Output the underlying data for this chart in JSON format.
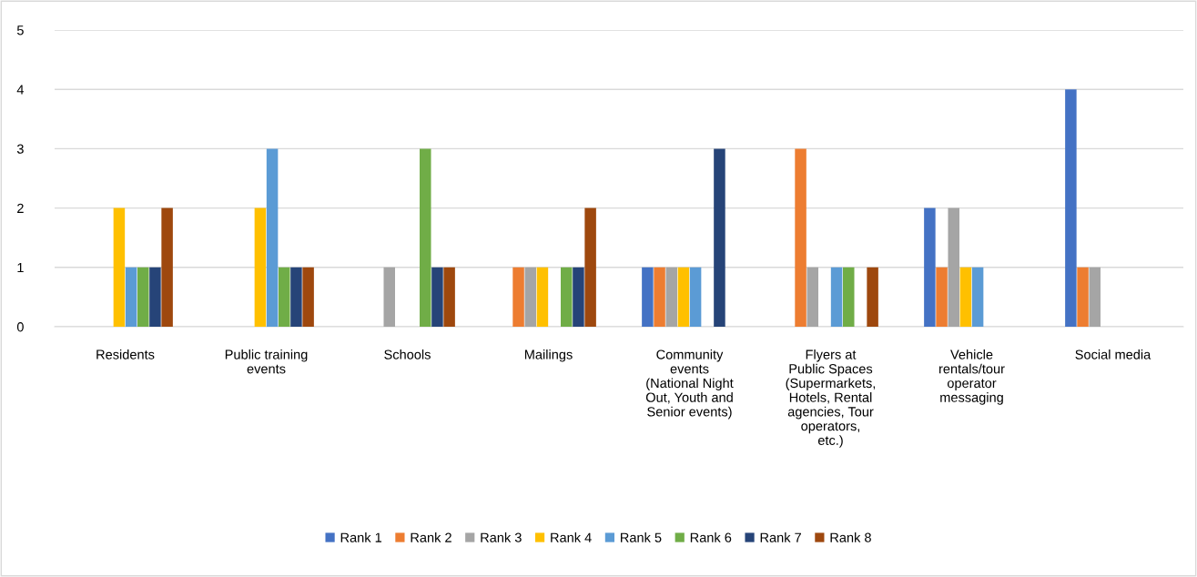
{
  "chart_data": {
    "type": "bar",
    "categories": [
      "Residents",
      "Public training events",
      "Schools",
      "Mailings",
      "Community events (National Night Out, Youth and Senior events)",
      "Flyers at Public Spaces (Supermarkets, Hotels, Rental agencies, Tour operators, etc.)",
      "Vehicle rentals/tour operator messaging",
      "Social media"
    ],
    "series": [
      {
        "name": "Rank 1",
        "color": "#4472c4",
        "values": [
          0,
          0,
          0,
          0,
          1,
          0,
          2,
          4
        ]
      },
      {
        "name": "Rank 2",
        "color": "#ed7d31",
        "values": [
          0,
          0,
          0,
          1,
          1,
          3,
          1,
          1
        ]
      },
      {
        "name": "Rank 3",
        "color": "#a5a5a5",
        "values": [
          0,
          0,
          1,
          1,
          1,
          1,
          2,
          1
        ]
      },
      {
        "name": "Rank 4",
        "color": "#ffc000",
        "values": [
          2,
          2,
          0,
          1,
          1,
          0,
          1,
          0
        ]
      },
      {
        "name": "Rank 5",
        "color": "#5b9bd5",
        "values": [
          1,
          3,
          0,
          0,
          1,
          1,
          1,
          0
        ]
      },
      {
        "name": "Rank 6",
        "color": "#70ad47",
        "values": [
          1,
          1,
          3,
          1,
          0,
          1,
          0,
          0
        ]
      },
      {
        "name": "Rank 7",
        "color": "#264478",
        "values": [
          1,
          1,
          1,
          1,
          3,
          0,
          0,
          0
        ]
      },
      {
        "name": "Rank 8",
        "color": "#9e480e",
        "values": [
          2,
          1,
          1,
          2,
          0,
          1,
          0,
          0
        ]
      }
    ],
    "ylim": [
      0,
      5
    ],
    "yticks": [
      0,
      1,
      2,
      3,
      4,
      5
    ],
    "grid": "y",
    "legend": "bottom"
  }
}
